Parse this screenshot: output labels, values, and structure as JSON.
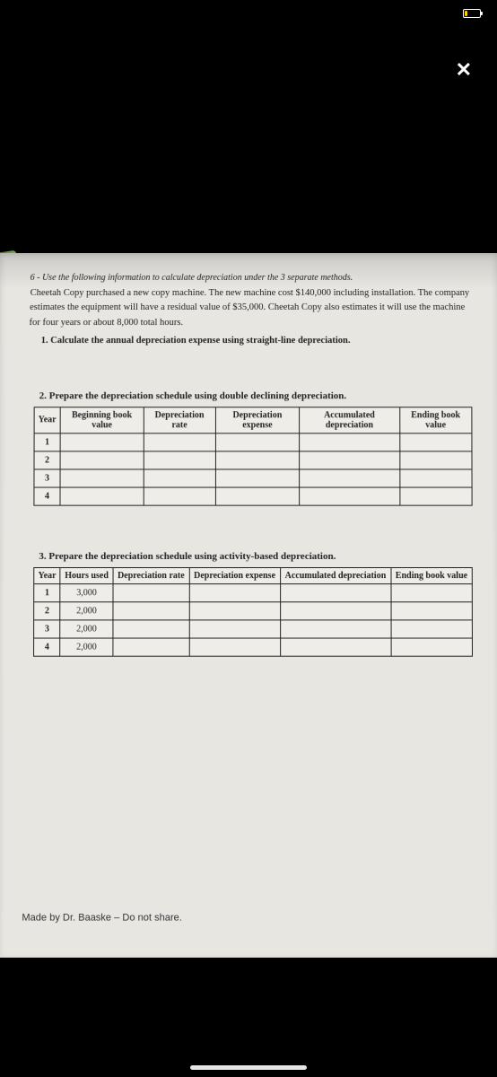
{
  "close_label": "✕",
  "intro_line": "6 - Use the following information to calculate depreciation under the 3 separate methods.",
  "body1": "Cheetah Copy purchased a new copy machine. The new machine cost $140,000 including installation. The company estimates the equipment will have a residual value of $35,000. Cheetah Copy also estimates it will use the machine for four years or about 8,000 total hours.",
  "q1": "1.  Calculate the annual depreciation expense using straight-line depreciation.",
  "q2": "2.  Prepare the depreciation schedule using double declining depreciation.",
  "q3": "3.  Prepare the depreciation schedule using activity-based depreciation.",
  "table2": {
    "headers": [
      "Year",
      "Beginning book value",
      "Depreciation rate",
      "Depreciation expense",
      "Accumulated depreciation",
      "Ending book value"
    ],
    "rows": [
      [
        "1",
        "",
        "",
        "",
        "",
        ""
      ],
      [
        "2",
        "",
        "",
        "",
        "",
        ""
      ],
      [
        "3",
        "",
        "",
        "",
        "",
        ""
      ],
      [
        "4",
        "",
        "",
        "",
        "",
        ""
      ]
    ]
  },
  "table3": {
    "headers": [
      "Year",
      "Hours used",
      "Depreciation rate",
      "Depreciation expense",
      "Accumulated depreciation",
      "Ending book value"
    ],
    "rows": [
      [
        "1",
        "3,000",
        "",
        "",
        "",
        ""
      ],
      [
        "2",
        "2,000",
        "",
        "",
        "",
        ""
      ],
      [
        "3",
        "2,000",
        "",
        "",
        "",
        ""
      ],
      [
        "4",
        "2,000",
        "",
        "",
        "",
        ""
      ]
    ]
  },
  "footer": "Made by Dr. Baaske – Do not share.",
  "colors": {
    "page_bg": "#e8e6e1",
    "black": "#000000",
    "text": "#222222",
    "battery_low": "#ffcc00",
    "green_edge": "#6b9a4a"
  }
}
